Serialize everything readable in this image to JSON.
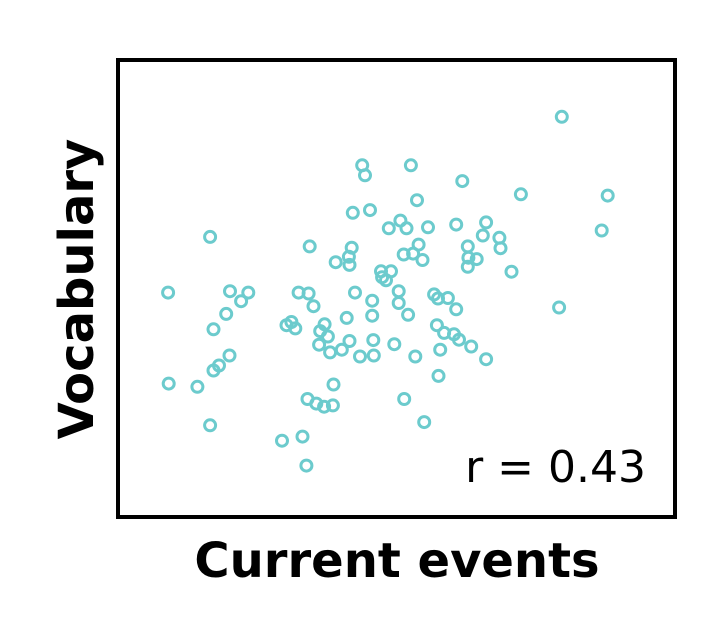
{
  "chart_data": {
    "type": "scatter",
    "xlabel": "Current events",
    "ylabel": "Vocabulary",
    "annotation": "r = 0.43",
    "xlim": [
      0,
      100
    ],
    "ylim": [
      0,
      100
    ],
    "marker_color": "#6ccbcd",
    "grid": false,
    "points": [
      [
        8.7,
        49.1
      ],
      [
        8.8,
        29.0
      ],
      [
        14.0,
        28.3
      ],
      [
        16.3,
        61.4
      ],
      [
        16.3,
        19.8
      ],
      [
        16.9,
        41.0
      ],
      [
        16.9,
        31.9
      ],
      [
        17.9,
        33.0
      ],
      [
        19.2,
        44.4
      ],
      [
        19.9,
        49.4
      ],
      [
        19.8,
        35.2
      ],
      [
        21.9,
        47.2
      ],
      [
        23.2,
        49.1
      ],
      [
        29.3,
        16.4
      ],
      [
        32.3,
        49.1
      ],
      [
        30.1,
        41.9
      ],
      [
        31.0,
        42.6
      ],
      [
        31.7,
        41.2
      ],
      [
        33.0,
        17.3
      ],
      [
        34.3,
        59.3
      ],
      [
        33.7,
        10.9
      ],
      [
        34.1,
        48.9
      ],
      [
        33.9,
        25.6
      ],
      [
        35.0,
        46.1
      ],
      [
        35.5,
        24.6
      ],
      [
        36.2,
        40.6
      ],
      [
        36.9,
        23.9
      ],
      [
        37.0,
        42.1
      ],
      [
        36.0,
        37.6
      ],
      [
        37.6,
        39.4
      ],
      [
        38.0,
        35.9
      ],
      [
        38.6,
        28.8
      ],
      [
        38.5,
        24.2
      ],
      [
        39.0,
        55.8
      ],
      [
        40.1,
        36.5
      ],
      [
        41.0,
        43.5
      ],
      [
        41.4,
        57.0
      ],
      [
        41.5,
        55.2
      ],
      [
        41.9,
        59.0
      ],
      [
        41.5,
        38.4
      ],
      [
        42.1,
        66.7
      ],
      [
        42.5,
        49.1
      ],
      [
        43.4,
        35.0
      ],
      [
        44.3,
        75.0
      ],
      [
        43.8,
        77.2
      ],
      [
        45.2,
        67.3
      ],
      [
        45.6,
        47.3
      ],
      [
        45.6,
        44.0
      ],
      [
        45.8,
        38.6
      ],
      [
        45.9,
        35.2
      ],
      [
        47.2,
        53.8
      ],
      [
        47.4,
        52.5
      ],
      [
        48.1,
        51.8
      ],
      [
        48.6,
        63.3
      ],
      [
        49.0,
        53.8
      ],
      [
        49.6,
        37.7
      ],
      [
        50.4,
        49.4
      ],
      [
        50.4,
        46.8
      ],
      [
        50.7,
        65.0
      ],
      [
        51.3,
        57.5
      ],
      [
        51.4,
        25.6
      ],
      [
        51.8,
        63.3
      ],
      [
        52.1,
        44.2
      ],
      [
        52.6,
        77.2
      ],
      [
        53.0,
        57.7
      ],
      [
        53.7,
        69.5
      ],
      [
        53.4,
        35.0
      ],
      [
        54.0,
        59.7
      ],
      [
        54.7,
        56.3
      ],
      [
        55.0,
        20.5
      ],
      [
        55.7,
        63.5
      ],
      [
        56.8,
        48.7
      ],
      [
        57.5,
        47.8
      ],
      [
        57.3,
        41.9
      ],
      [
        57.9,
        36.5
      ],
      [
        57.6,
        30.7
      ],
      [
        58.6,
        40.2
      ],
      [
        59.3,
        47.9
      ],
      [
        60.4,
        39.9
      ],
      [
        60.8,
        64.1
      ],
      [
        60.8,
        45.4
      ],
      [
        61.9,
        73.7
      ],
      [
        61.3,
        38.7
      ],
      [
        62.9,
        59.3
      ],
      [
        63.0,
        56.8
      ],
      [
        62.9,
        54.8
      ],
      [
        63.5,
        37.2
      ],
      [
        64.5,
        56.5
      ],
      [
        65.6,
        61.7
      ],
      [
        66.2,
        64.6
      ],
      [
        66.2,
        34.4
      ],
      [
        68.6,
        61.2
      ],
      [
        68.8,
        58.9
      ],
      [
        70.8,
        53.7
      ],
      [
        72.5,
        70.8
      ],
      [
        79.4,
        45.8
      ],
      [
        79.9,
        87.9
      ],
      [
        87.1,
        62.8
      ],
      [
        88.2,
        70.5
      ]
    ]
  }
}
